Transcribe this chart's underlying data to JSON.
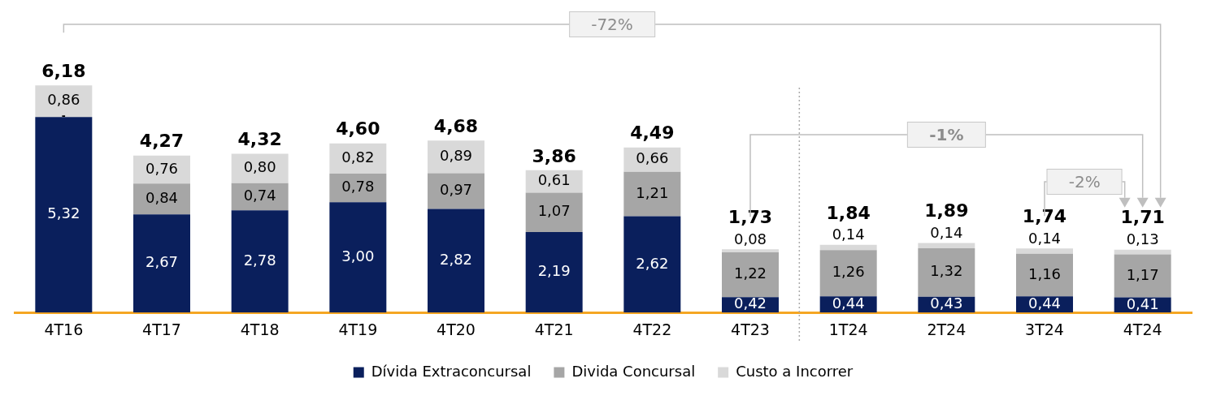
{
  "chart_data": {
    "type": "bar",
    "stacked": true,
    "legend": "bottom",
    "categories": [
      "4T16",
      "4T17",
      "4T18",
      "4T19",
      "4T20",
      "4T21",
      "4T22",
      "4T23",
      "1T24",
      "2T24",
      "3T24",
      "4T24"
    ],
    "series": [
      {
        "name": "Dívida Extraconcursal",
        "color": "#0a1f5c",
        "values": [
          5.32,
          2.67,
          2.78,
          3.0,
          2.82,
          2.19,
          2.62,
          0.42,
          0.44,
          0.43,
          0.44,
          0.41
        ],
        "value_labels": [
          "5,32",
          "2,67",
          "2,78",
          "3,00",
          "2,82",
          "2,19",
          "2,62",
          "0,42",
          "0,44",
          "0,43",
          "0,44",
          "0,41"
        ]
      },
      {
        "name": "Divida Concursal",
        "color": "#a6a6a6",
        "values": [
          0,
          0.84,
          0.74,
          0.78,
          0.97,
          1.07,
          1.21,
          1.22,
          1.26,
          1.32,
          1.16,
          1.17
        ],
        "value_labels": [
          "-",
          "0,84",
          "0,74",
          "0,78",
          "0,97",
          "1,07",
          "1,21",
          "1,22",
          "1,26",
          "1,32",
          "1,16",
          "1,17"
        ]
      },
      {
        "name": "Custo a Incorrer",
        "color": "#d9d9d9",
        "values": [
          0.86,
          0.76,
          0.8,
          0.82,
          0.89,
          0.61,
          0.66,
          0.08,
          0.14,
          0.14,
          0.14,
          0.13
        ],
        "value_labels": [
          "0,86",
          "0,76",
          "0,80",
          "0,82",
          "0,89",
          "0,61",
          "0,66",
          "0,08",
          "0,14",
          "0,14",
          "0,14",
          "0,13"
        ]
      }
    ],
    "totals": [
      "6,18",
      "4,27",
      "4,32",
      "4,60",
      "4,68",
      "3,86",
      "4,49",
      "1,73",
      "1,84",
      "1,89",
      "1,74",
      "1,71"
    ],
    "annotations": [
      "-72%",
      "-1%",
      "-2%"
    ]
  }
}
